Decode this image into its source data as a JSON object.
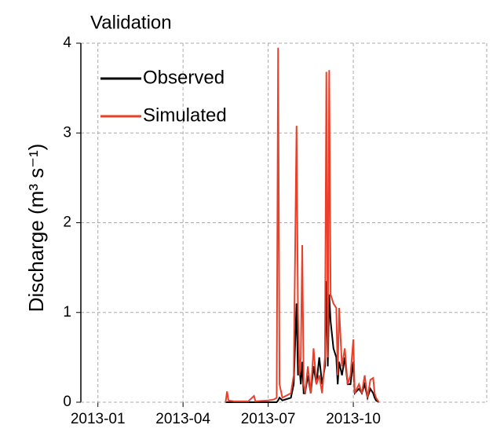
{
  "chart_data": {
    "type": "line",
    "title": "Validation",
    "ylabel": "Discharge (m³ s⁻¹)",
    "xlim": [
      -0.6,
      13.7
    ],
    "ylim": [
      0,
      4
    ],
    "xticks": [
      {
        "value": 0,
        "label": "2013-01"
      },
      {
        "value": 3,
        "label": "2013-04"
      },
      {
        "value": 6,
        "label": "2013-07"
      },
      {
        "value": 9,
        "label": "2013-10"
      }
    ],
    "yticks": [
      0,
      1,
      2,
      3,
      4
    ],
    "grid": true,
    "legend": "upper left",
    "x": [
      4.5,
      4.55,
      4.6,
      4.8,
      5.3,
      5.5,
      5.55,
      6.0,
      6.2,
      6.3,
      6.35,
      6.4,
      6.5,
      6.8,
      6.9,
      7.0,
      7.05,
      7.1,
      7.15,
      7.2,
      7.25,
      7.3,
      7.4,
      7.5,
      7.6,
      7.7,
      7.8,
      7.9,
      8.0,
      8.05,
      8.1,
      8.15,
      8.2,
      8.3,
      8.4,
      8.45,
      8.5,
      8.6,
      8.7,
      8.8,
      8.9,
      9.0,
      9.05,
      9.2,
      9.3,
      9.4,
      9.5,
      9.6,
      9.7,
      9.75,
      9.8,
      9.9
    ],
    "series": [
      {
        "name": "Observed",
        "color": "#000000",
        "values": [
          0,
          0,
          0,
          0,
          0,
          0,
          0,
          0,
          0,
          0,
          0.02,
          0.05,
          0.02,
          0.05,
          0.2,
          1.1,
          0.3,
          0.4,
          0.2,
          0.45,
          0.1,
          0.1,
          0.3,
          0.1,
          0.4,
          0.2,
          0.5,
          0.2,
          0.4,
          1.35,
          0.4,
          1.2,
          0.9,
          0.6,
          0.5,
          0.2,
          0.45,
          0.3,
          0.5,
          0.2,
          0.2,
          0.45,
          0.1,
          0.15,
          0.1,
          0.2,
          0.05,
          0.15,
          0.1,
          0.05,
          0.02,
          0
        ]
      },
      {
        "name": "Simulated",
        "color": "#e8412b",
        "values": [
          0,
          0.12,
          0.02,
          0.01,
          0.01,
          0.07,
          0.01,
          0.02,
          0.03,
          0.05,
          3.95,
          0.2,
          0.05,
          0.1,
          0.3,
          3.08,
          1.0,
          0.3,
          0.5,
          1.75,
          0.2,
          0.1,
          0.4,
          0.1,
          0.6,
          0.2,
          0.3,
          0.1,
          0.5,
          3.68,
          0.5,
          3.7,
          1.2,
          1.1,
          1.05,
          0.3,
          1.05,
          0.4,
          0.6,
          0.2,
          0.3,
          0.7,
          0.1,
          0.2,
          0.1,
          0.3,
          0.05,
          0.25,
          0.27,
          0.1,
          0.05,
          0
        ]
      }
    ]
  }
}
